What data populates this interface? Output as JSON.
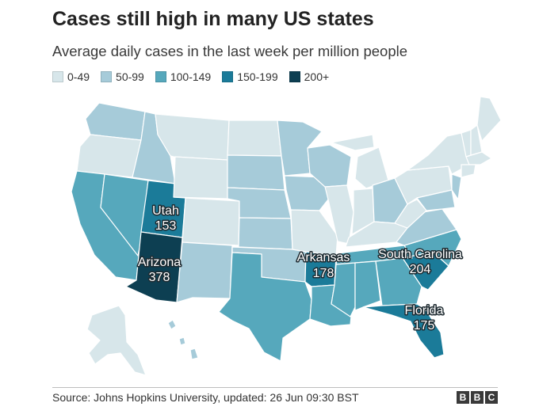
{
  "title": "Cases still high in many US states",
  "subtitle": "Average daily cases in the last week per million people",
  "colors": {
    "b0": "#d7e6ea",
    "b1": "#a6cbd9",
    "b2": "#56a8bc",
    "b3": "#1b7b99",
    "b4": "#0d3f52"
  },
  "legend": [
    {
      "label": "0-49",
      "color": "#d7e6ea"
    },
    {
      "label": "50-99",
      "color": "#a6cbd9"
    },
    {
      "label": "100-149",
      "color": "#56a8bc"
    },
    {
      "label": "150-199",
      "color": "#1b7b99"
    },
    {
      "label": "200+",
      "color": "#0d3f52"
    }
  ],
  "callouts": {
    "utah": {
      "name": "Utah",
      "value": "153"
    },
    "arizona": {
      "name": "Arizona",
      "value": "378"
    },
    "arkansas": {
      "name": "Arkansas",
      "value": "178"
    },
    "south_carolina": {
      "name": "South Carolina",
      "value": "204"
    },
    "florida": {
      "name": "Florida",
      "value": "175"
    }
  },
  "source": "Source: Johns Hopkins University, updated: 26 Jun 09:30 BST",
  "brand": [
    "B",
    "B",
    "C"
  ]
}
